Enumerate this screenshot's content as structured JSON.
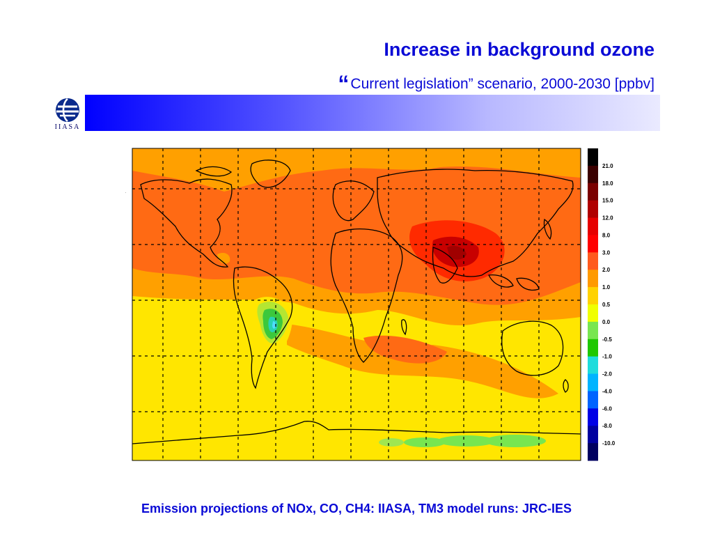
{
  "header": {
    "title": "Increase in background ozone",
    "subtitle_quote": "“",
    "subtitle": "Current legislation” scenario, 2000-2030 [ppbv]",
    "logo_text": "IIASA"
  },
  "colorbar": {
    "labels": [
      "21.0",
      "18.0",
      "15.0",
      "12.0",
      "8.0",
      "3.0",
      "2.0",
      "1.0",
      "0.5",
      "0.0",
      "-0.5",
      "-1.0",
      "-2.0",
      "-4.0",
      "-6.0",
      "-8.0",
      "-10.0"
    ],
    "colors": [
      "#000000",
      "#3a0000",
      "#7a0000",
      "#b00000",
      "#e60000",
      "#ff0000",
      "#ff5a1e",
      "#ff9a00",
      "#ffd200",
      "#f0ff00",
      "#78e650",
      "#1ec800",
      "#1edcdc",
      "#00b4ff",
      "#0064ff",
      "#0000e6",
      "#0000a0",
      "#000060"
    ]
  },
  "footer": "Emission projections of NOx, CO, CH4: IIASA, TM3 model runs: JRC-IES"
}
